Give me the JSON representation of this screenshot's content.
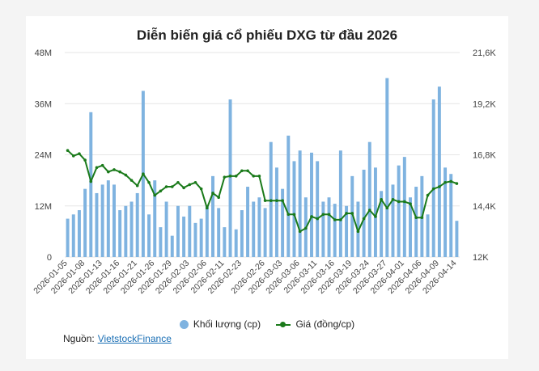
{
  "chart_data": {
    "type": "bar+line",
    "title": "Diễn biến giá cổ phiếu DXG từ đầu 2026",
    "y_left": {
      "ticks": [
        "0",
        "12M",
        "24M",
        "36M",
        "48M"
      ],
      "lim": [
        0,
        48
      ]
    },
    "y_right": {
      "ticks": [
        "12K",
        "14,4K",
        "16,8K",
        "19,2K",
        "21,6K"
      ],
      "lim": [
        12,
        21.6
      ]
    },
    "x_ticks": [
      "2026-01-05",
      "2026-01-08",
      "2026-01-13",
      "2026-01-16",
      "2026-01-21",
      "2026-01-26",
      "2026-01-29",
      "2026-02-03",
      "2026-02-06",
      "2026-02-11",
      "2026-02-23",
      "2026-02-26",
      "2026-03-03",
      "2026-03-06",
      "2026-03-11",
      "2026-03-16",
      "2026-03-19",
      "2026-03-24",
      "2026-03-27",
      "2026-04-01",
      "2026-04-06",
      "2026-04-09",
      "2026-04-14"
    ],
    "series": [
      {
        "name": "Khối lượng (cp)",
        "kind": "bar",
        "axis": "left",
        "color": "#7fb3e0",
        "values": [
          9,
          10,
          11,
          16,
          34,
          15,
          17,
          18,
          17,
          11,
          12,
          13,
          15,
          39,
          10,
          18,
          7,
          13,
          5,
          12,
          9.5,
          12,
          8,
          9,
          12,
          19,
          11.5,
          7,
          37,
          6.5,
          11,
          16.5,
          13,
          14,
          11.5,
          27,
          21,
          16,
          28.5,
          22.5,
          25,
          14,
          24.5,
          22.5,
          13,
          14,
          12.5,
          25,
          12,
          19,
          13,
          20.5,
          27,
          21,
          15.5,
          42,
          17,
          21.5,
          23.5,
          14,
          16.5,
          19,
          10,
          37,
          40,
          21,
          19.5,
          8.5
        ]
      },
      {
        "name": "Giá (đồng/cp)",
        "kind": "line",
        "axis": "right",
        "color": "#1a7a1a",
        "values": [
          17.0,
          16.75,
          16.85,
          16.55,
          15.55,
          16.2,
          16.3,
          16.0,
          16.1,
          16.0,
          15.85,
          15.6,
          15.35,
          15.9,
          15.5,
          14.9,
          15.1,
          15.3,
          15.3,
          15.5,
          15.25,
          15.4,
          15.5,
          15.2,
          14.3,
          15.0,
          14.8,
          15.75,
          15.8,
          15.8,
          16.05,
          16.05,
          15.8,
          15.8,
          14.65,
          14.65,
          14.65,
          14.65,
          14.0,
          14.0,
          13.2,
          13.35,
          13.9,
          13.8,
          14.0,
          14.0,
          13.75,
          13.75,
          14.05,
          14.05,
          13.2,
          13.8,
          14.2,
          13.9,
          14.7,
          14.3,
          14.7,
          14.6,
          14.6,
          14.5,
          13.85,
          13.85,
          14.9,
          15.2,
          15.3,
          15.5,
          15.55,
          15.45
        ]
      }
    ]
  },
  "legend": [
    {
      "label": "Khối lượng (cp)",
      "color": "#7fb3e0",
      "kind": "bar"
    },
    {
      "label": "Giá (đồng/cp)",
      "color": "#1a7a1a",
      "kind": "line"
    }
  ],
  "source": {
    "label": "Nguồn:",
    "link_text": "VietstockFinance"
  }
}
